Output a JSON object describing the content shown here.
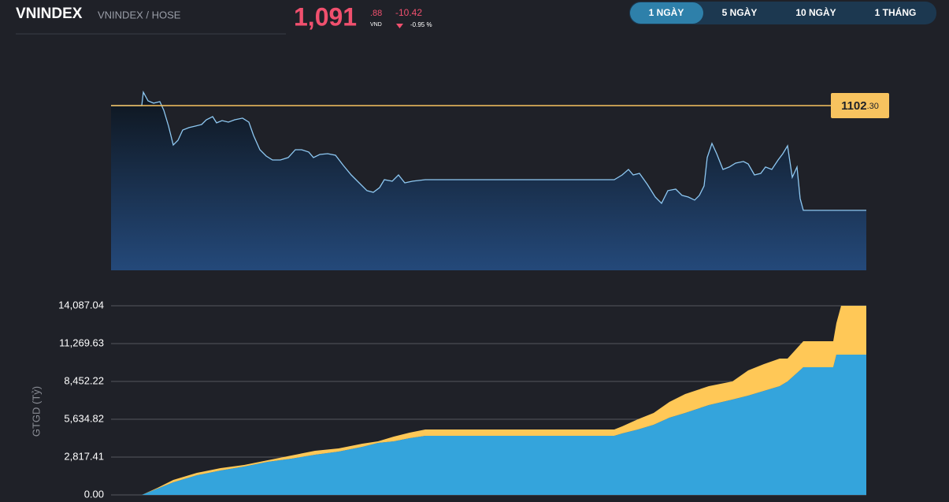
{
  "header": {
    "ticker": "VNINDEX",
    "exchange": "VNINDEX / HOSE",
    "price": "1,091",
    "price_decimal": ".88",
    "currency": "VND",
    "change": "-10.42",
    "change_pct": "-0.95 %"
  },
  "tabs": {
    "items": [
      "1 NGÀY",
      "5 NGÀY",
      "10 NGÀY",
      "1 THÁNG"
    ],
    "active": 0
  },
  "chart_data": [
    {
      "type": "line",
      "x": [
        0,
        39,
        41,
        47,
        54,
        62,
        67,
        73,
        79,
        85,
        91,
        99,
        107,
        115,
        121,
        129,
        134,
        141,
        149,
        157,
        167,
        175,
        181,
        189,
        197,
        205,
        215,
        225,
        234,
        242,
        251,
        257,
        265,
        275,
        285,
        295,
        305,
        315,
        325,
        333,
        341,
        347,
        357,
        365,
        373,
        383,
        399,
        639,
        649,
        657,
        663,
        671,
        681,
        691,
        699,
        707,
        717,
        725,
        733,
        741,
        747,
        753,
        757,
        763,
        769,
        777,
        785,
        793,
        803,
        809,
        817,
        825,
        831,
        839,
        847,
        853,
        859,
        865,
        871,
        875,
        879,
        919,
        959
      ],
      "series": [
        {
          "color": "#8ec8f2",
          "values": [
            1102.3,
            1102.3,
            1103.63,
            1102.77,
            1102.54,
            1102.69,
            1101.83,
            1100.26,
            1098.38,
            1098.85,
            1099.87,
            1100.11,
            1100.26,
            1100.42,
            1100.89,
            1101.2,
            1100.58,
            1100.81,
            1100.65,
            1100.89,
            1101.05,
            1100.65,
            1099.32,
            1097.91,
            1097.28,
            1096.89,
            1096.89,
            1097.13,
            1097.91,
            1097.91,
            1097.68,
            1097.13,
            1097.44,
            1097.52,
            1097.36,
            1096.34,
            1095.4,
            1094.62,
            1093.84,
            1093.68,
            1094.15,
            1094.93,
            1094.78,
            1095.4,
            1094.62,
            1094.78,
            1094.93,
            1094.93,
            1095.4,
            1095.95,
            1095.4,
            1095.56,
            1094.46,
            1093.21,
            1092.58,
            1093.84,
            1093.99,
            1093.37,
            1093.21,
            1092.9,
            1093.37,
            1094.31,
            1097.13,
            1098.54,
            1097.52,
            1095.95,
            1096.19,
            1096.58,
            1096.74,
            1096.5,
            1095.4,
            1095.56,
            1096.19,
            1095.95,
            1096.89,
            1097.52,
            1098.3,
            1095.17,
            1096.19,
            1093.05,
            1091.88,
            1091.88,
            1091.88
          ]
        }
      ],
      "xlim": [
        0,
        959
      ],
      "ylim": [
        1085.92,
        1104.57
      ],
      "reference": {
        "value": 1102.3,
        "label": "1102",
        "label_decimal": ".30",
        "color": "#f7c35f"
      }
    },
    {
      "type": "stacked-area",
      "y_label": "GTGD (Tỷ)",
      "x": [
        0,
        39,
        59,
        79,
        109,
        139,
        169,
        199,
        229,
        259,
        289,
        319,
        339,
        359,
        379,
        399,
        639,
        649,
        669,
        689,
        709,
        729,
        759,
        789,
        809,
        829,
        849,
        859,
        879,
        917,
        921,
        927,
        959
      ],
      "series": [
        {
          "color": "#34a4dc",
          "values": [
            0,
            0,
            469.6,
            939.1,
            1467.4,
            1819.6,
            2113.1,
            2465.2,
            2700.0,
            2993.5,
            3228.3,
            3580.5,
            3874.0,
            3991.3,
            4226.1,
            4402.2,
            4402.2,
            4578.3,
            4871.8,
            5223.9,
            5752.2,
            6104.4,
            6691.3,
            7102.2,
            7395.7,
            7747.9,
            8100.0,
            8452.2,
            9508.7,
            9508.7,
            10447.9,
            10447.9,
            10447.9
          ]
        },
        {
          "color": "#ffc857",
          "values": [
            0,
            0,
            58.7,
            176.1,
            176.1,
            176.1,
            117.4,
            117.4,
            234.8,
            293.5,
            234.8,
            234.8,
            117.4,
            352.2,
            410.9,
            469.6,
            469.6,
            528.3,
            763.0,
            880.4,
            1173.9,
            1408.7,
            1408.7,
            1350.0,
            1878.3,
            1995.7,
            2054.3,
            1702.2,
            1937.0,
            1937.0,
            2347.8,
            3639.1,
            3639.1
          ]
        }
      ],
      "xlim": [
        0,
        959
      ],
      "ylim": [
        0,
        14087.04
      ],
      "yticks": [
        {
          "value": 0,
          "label": "0.00"
        },
        {
          "value": 2817.41,
          "label": "2,817.41"
        },
        {
          "value": 5634.82,
          "label": "5,634.82"
        },
        {
          "value": 8452.22,
          "label": "8,452.22"
        },
        {
          "value": 11269.63,
          "label": "11,269.63"
        },
        {
          "value": 14087.04,
          "label": "14,087.04"
        }
      ],
      "grid": true
    }
  ]
}
